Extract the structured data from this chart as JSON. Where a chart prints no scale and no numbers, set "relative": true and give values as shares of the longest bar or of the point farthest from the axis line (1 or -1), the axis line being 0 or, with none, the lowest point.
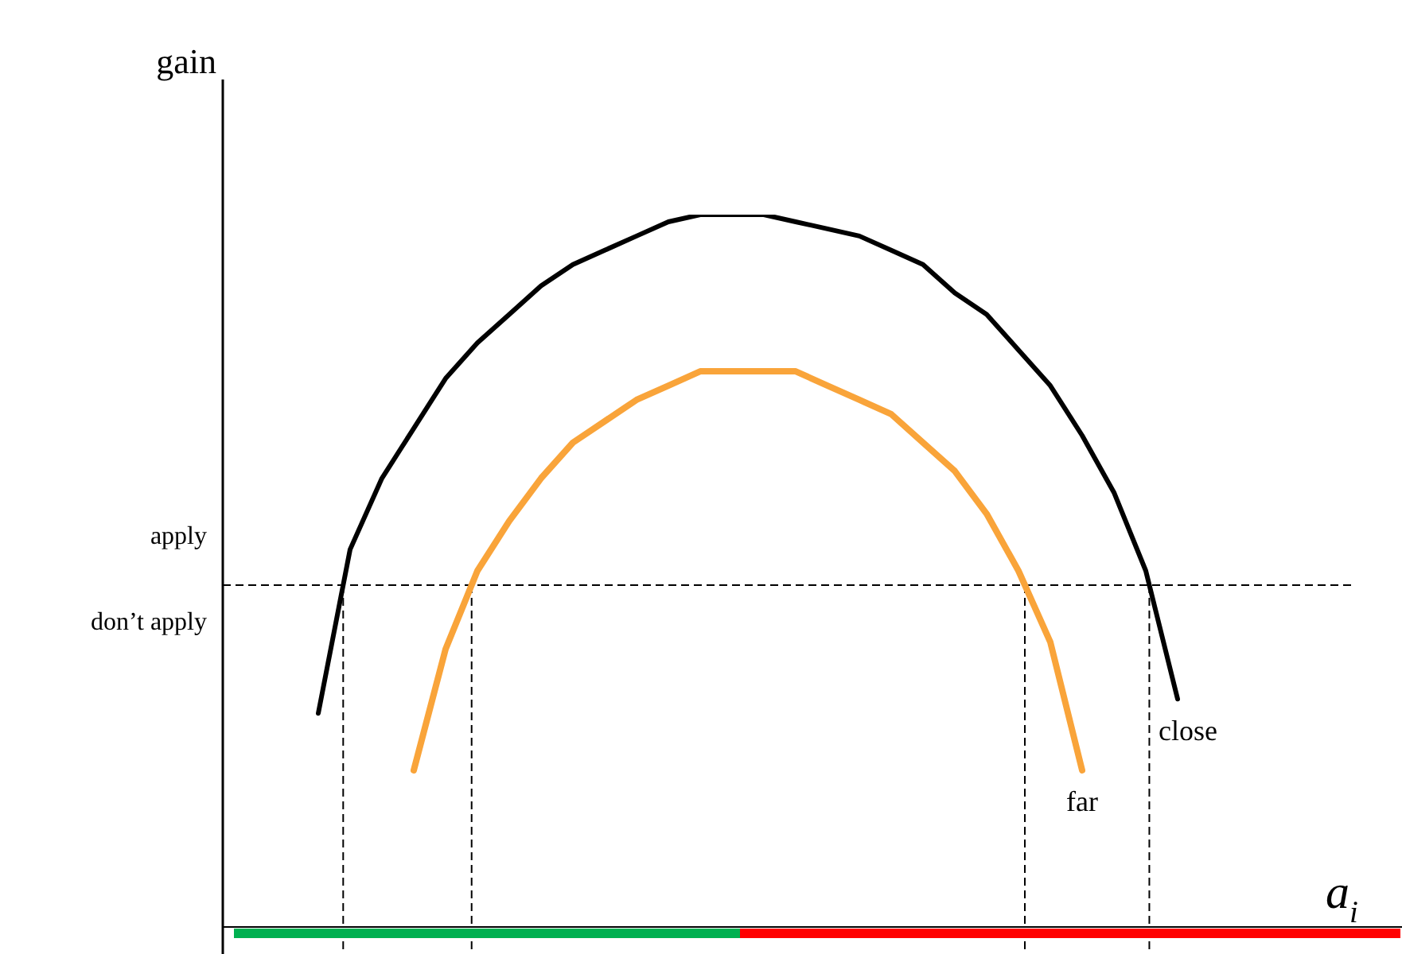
{
  "chart_data": {
    "type": "line",
    "relative": true,
    "xlabel": "a$_{i}$",
    "ylabel": "gain",
    "legend": false,
    "marker": "none",
    "line_style": "solid",
    "categories": [
      null,
      null,
      null,
      null,
      null,
      null,
      null,
      null,
      null,
      null,
      null,
      null,
      null,
      null,
      null,
      null,
      null,
      null,
      null,
      null,
      null,
      null,
      null,
      null,
      null,
      null,
      null,
      null
    ],
    "series": [
      {
        "name": "close",
        "color": "#000000",
        "values": [
          0.3,
          0.53,
          0.63,
          0.7,
          0.77,
          0.82,
          0.86,
          0.9,
          0.93,
          0.95,
          0.97,
          0.99,
          1.0,
          1.0,
          1.0,
          0.99,
          0.98,
          0.97,
          0.95,
          0.93,
          0.89,
          0.86,
          0.81,
          0.76,
          0.69,
          0.61,
          0.5,
          0.32
        ]
      },
      {
        "name": "far",
        "color": "#f9a43a",
        "values": [
          null,
          null,
          null,
          0.22,
          0.39,
          0.5,
          0.57,
          0.63,
          0.68,
          0.71,
          0.74,
          0.76,
          0.78,
          0.78,
          0.78,
          0.78,
          0.76,
          0.74,
          0.72,
          0.68,
          0.64,
          0.58,
          0.5,
          0.4,
          0.22,
          null,
          null,
          null
        ]
      }
    ],
    "ref_lines": [
      {
        "axis": "y",
        "value": 0.48,
        "line_style": "dashed",
        "color": "#000000"
      }
    ],
    "annotations": [
      "apply",
      "don’t apply"
    ]
  }
}
